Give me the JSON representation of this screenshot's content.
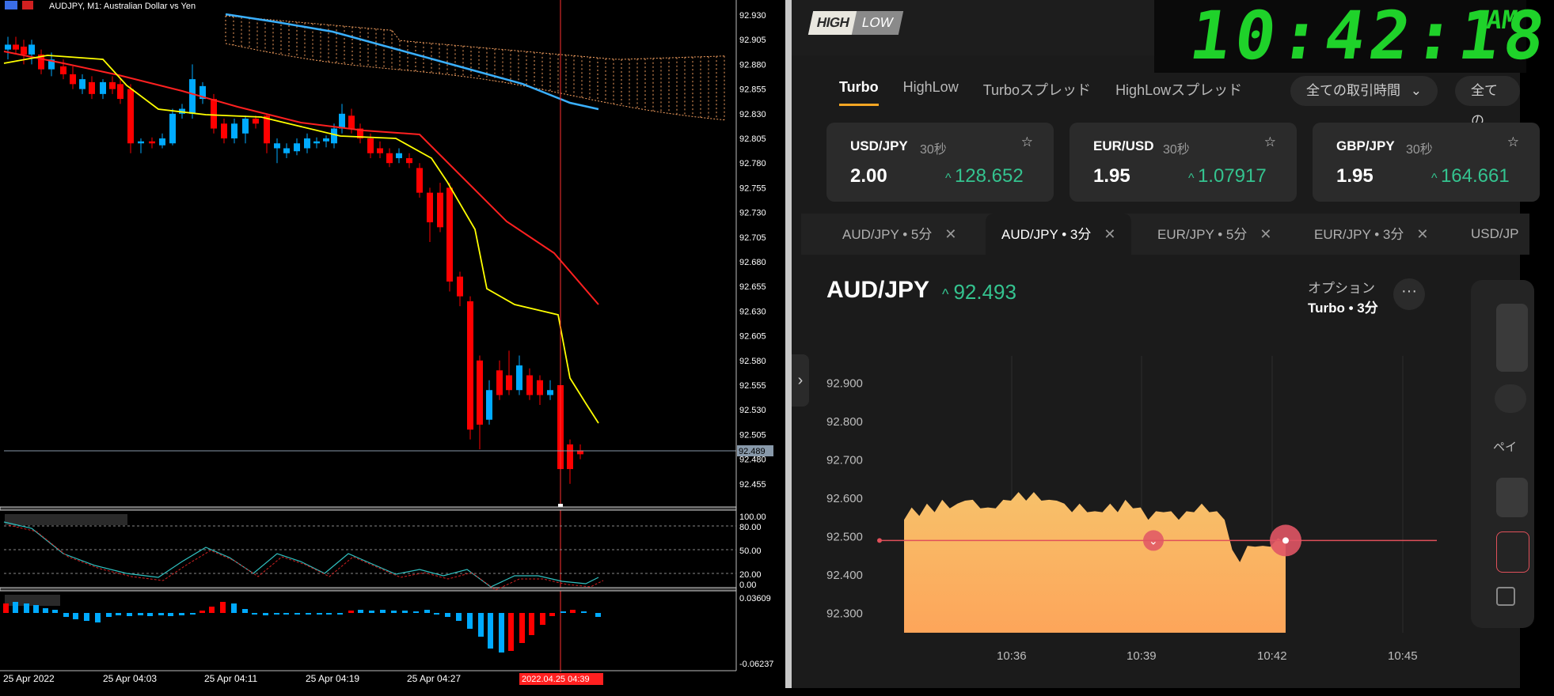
{
  "mt4": {
    "title": "AUDJPY, M1:  Australian Dollar vs Yen",
    "price_scale": [
      "92.930",
      "92.905",
      "92.880",
      "92.855",
      "92.830",
      "92.805",
      "92.780",
      "92.755",
      "92.730",
      "92.705",
      "92.680",
      "92.655",
      "92.630",
      "92.605",
      "92.580",
      "92.555",
      "92.530",
      "92.505",
      "92.480",
      "92.455"
    ],
    "current_price": "92.489",
    "stoch_scale": [
      "100.00",
      "80.00",
      "50.00",
      "20.00",
      "0.00"
    ],
    "macd_scale": [
      "0.03609",
      "-0.06237"
    ],
    "time_labels": [
      "25 Apr 2022",
      "25 Apr 04:03",
      "25 Apr 04:11",
      "25 Apr 04:19",
      "25 Apr 04:27"
    ],
    "time_highlight": "2022.04.25 04:39",
    "colors": {
      "bull": "#00aaff",
      "bear": "#ff0000",
      "yellow_ma": "#ffff00",
      "red_ma": "#ff2020",
      "blue_ma": "#3ab0ff",
      "cloud": "#f5a060",
      "crosshair": "#ff3030"
    }
  },
  "highlow": {
    "logo": {
      "part1": "HIGH",
      "part2": "LOW"
    },
    "clock": {
      "time": "10:42:18",
      "ampm": "AM"
    },
    "tabs": [
      {
        "label": "Turbo",
        "active": true
      },
      {
        "label": "HighLow",
        "active": false
      },
      {
        "label": "Turboスプレッド",
        "active": false
      },
      {
        "label": "HighLowスプレッド",
        "active": false
      }
    ],
    "time_filter": "全ての取引時間",
    "time_filter2": "全ての",
    "cards": [
      {
        "pair": "USD/JPY",
        "duration": "30秒",
        "payout": "2.00",
        "price": "128.652"
      },
      {
        "pair": "EUR/USD",
        "duration": "30秒",
        "payout": "1.95",
        "price": "1.07917"
      },
      {
        "pair": "GBP/JPY",
        "duration": "30秒",
        "payout": "1.95",
        "price": "164.661"
      }
    ],
    "asset_tabs": [
      {
        "label": "AUD/JPY • 5分",
        "active": false
      },
      {
        "label": "AUD/JPY • 3分",
        "active": true
      },
      {
        "label": "EUR/JPY • 5分",
        "active": false
      },
      {
        "label": "EUR/JPY • 3分",
        "active": false
      },
      {
        "label": "USD/JP",
        "active": false
      }
    ],
    "asset": {
      "name": "AUD/JPY",
      "price": "92.493",
      "arrow": "^"
    },
    "option": {
      "label": "オプション",
      "value": "Turbo • 3分"
    },
    "more": "···",
    "right_panel": {
      "label": "ペイ"
    },
    "colors": {
      "up": "#34c38f",
      "accent": "#f5a623",
      "area_top": "#f7c16a",
      "area_bottom": "#fdb05e",
      "strike": "#e0505a"
    }
  },
  "chart_data": {
    "type": "area",
    "title": "",
    "xlabel": "",
    "ylabel": "",
    "y_ticks": [
      "92.900",
      "92.800",
      "92.700",
      "92.600",
      "92.500",
      "92.400",
      "92.300"
    ],
    "x_ticks": [
      "10:36",
      "10:39",
      "10:42",
      "10:45"
    ],
    "ylim": [
      92.25,
      92.95
    ],
    "strike": 92.49,
    "series": [
      {
        "values": [
          92.55,
          92.57,
          92.56,
          92.58,
          92.57,
          92.59,
          92.58,
          92.58,
          92.6,
          92.59,
          92.58,
          92.57,
          92.58,
          92.59,
          92.6,
          92.61,
          92.6,
          92.61,
          92.6,
          92.59,
          92.6,
          92.58,
          92.57,
          92.58,
          92.57,
          92.56,
          92.57,
          92.58,
          92.57,
          92.59,
          92.58,
          92.57,
          92.55,
          92.56,
          92.57,
          92.56,
          92.55,
          92.56,
          92.57,
          92.58,
          92.57,
          92.56,
          92.55,
          92.46,
          92.44,
          92.47,
          92.48,
          92.47,
          92.48,
          92.49,
          92.49
        ]
      }
    ]
  }
}
